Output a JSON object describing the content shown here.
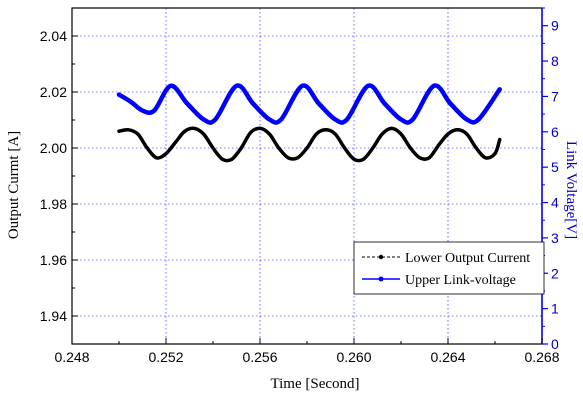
{
  "chart_data": {
    "type": "line",
    "xlabel": "Time [Second]",
    "ylabel": "Output Curmt [A]",
    "y2label": "Link Voltage[V]",
    "xlim": [
      0.248,
      0.268
    ],
    "ylim": [
      1.93,
      2.05
    ],
    "y2lim": [
      0,
      9.5
    ],
    "x_ticks": [
      "0.248",
      "0.252",
      "0.256",
      "0.260",
      "0.264",
      "0.268"
    ],
    "x_tick_values": [
      0.248,
      0.252,
      0.256,
      0.26,
      0.264,
      0.268
    ],
    "y_ticks": [
      "1.94",
      "1.96",
      "1.98",
      "2.00",
      "2.02",
      "2.04"
    ],
    "y_tick_values": [
      1.94,
      1.96,
      1.98,
      2.0,
      2.02,
      2.04
    ],
    "y2_ticks": [
      "0",
      "1",
      "2",
      "3",
      "4",
      "5",
      "6",
      "7",
      "8",
      "9"
    ],
    "y2_tick_values": [
      0,
      1,
      2,
      3,
      4,
      5,
      6,
      7,
      8,
      9
    ],
    "grid": true,
    "legend_position": "lower-right",
    "series": [
      {
        "name": "Lower Output Current",
        "axis": "left",
        "color": "#000000",
        "x": [
          0.25,
          0.2504,
          0.2508,
          0.2512,
          0.2516,
          0.252,
          0.2524,
          0.2528,
          0.2532,
          0.2536,
          0.254,
          0.2544,
          0.2548,
          0.2552,
          0.2556,
          0.256,
          0.2564,
          0.2568,
          0.2572,
          0.2576,
          0.258,
          0.2584,
          0.2588,
          0.2592,
          0.2596,
          0.26,
          0.2604,
          0.2608,
          0.2612,
          0.2616,
          0.262,
          0.2624,
          0.2628,
          0.2632,
          0.2636,
          0.264,
          0.2644,
          0.2648,
          0.2652,
          0.2656,
          0.266,
          0.2662
        ],
        "y": [
          2.006,
          2.0065,
          2.005,
          2.0,
          1.9965,
          1.998,
          2.002,
          2.006,
          2.007,
          2.005,
          2.0,
          1.996,
          1.996,
          2.0,
          2.0055,
          2.007,
          2.005,
          2.0,
          1.9965,
          1.9965,
          2.0,
          2.005,
          2.0065,
          2.005,
          2.0,
          1.996,
          1.996,
          2.0,
          2.005,
          2.007,
          2.005,
          2.0,
          1.9965,
          1.9965,
          2.001,
          2.005,
          2.0065,
          2.005,
          2.0,
          1.9965,
          1.998,
          2.003
        ]
      },
      {
        "name": "Upper Link-voltage",
        "axis": "right",
        "color": "#0000ff",
        "x": [
          0.25,
          0.2505,
          0.251,
          0.2515,
          0.2522,
          0.2529,
          0.2536,
          0.2541,
          0.255,
          0.2557,
          0.2564,
          0.2569,
          0.2578,
          0.2585,
          0.2592,
          0.2597,
          0.2606,
          0.2613,
          0.262,
          0.2625,
          0.2634,
          0.2641,
          0.2648,
          0.2653,
          0.2662
        ],
        "y": [
          7.05,
          6.85,
          6.6,
          6.6,
          7.3,
          6.8,
          6.35,
          6.35,
          7.3,
          6.8,
          6.35,
          6.35,
          7.3,
          6.8,
          6.35,
          6.35,
          7.3,
          6.8,
          6.35,
          6.35,
          7.3,
          6.8,
          6.35,
          6.35,
          7.2
        ]
      }
    ]
  }
}
